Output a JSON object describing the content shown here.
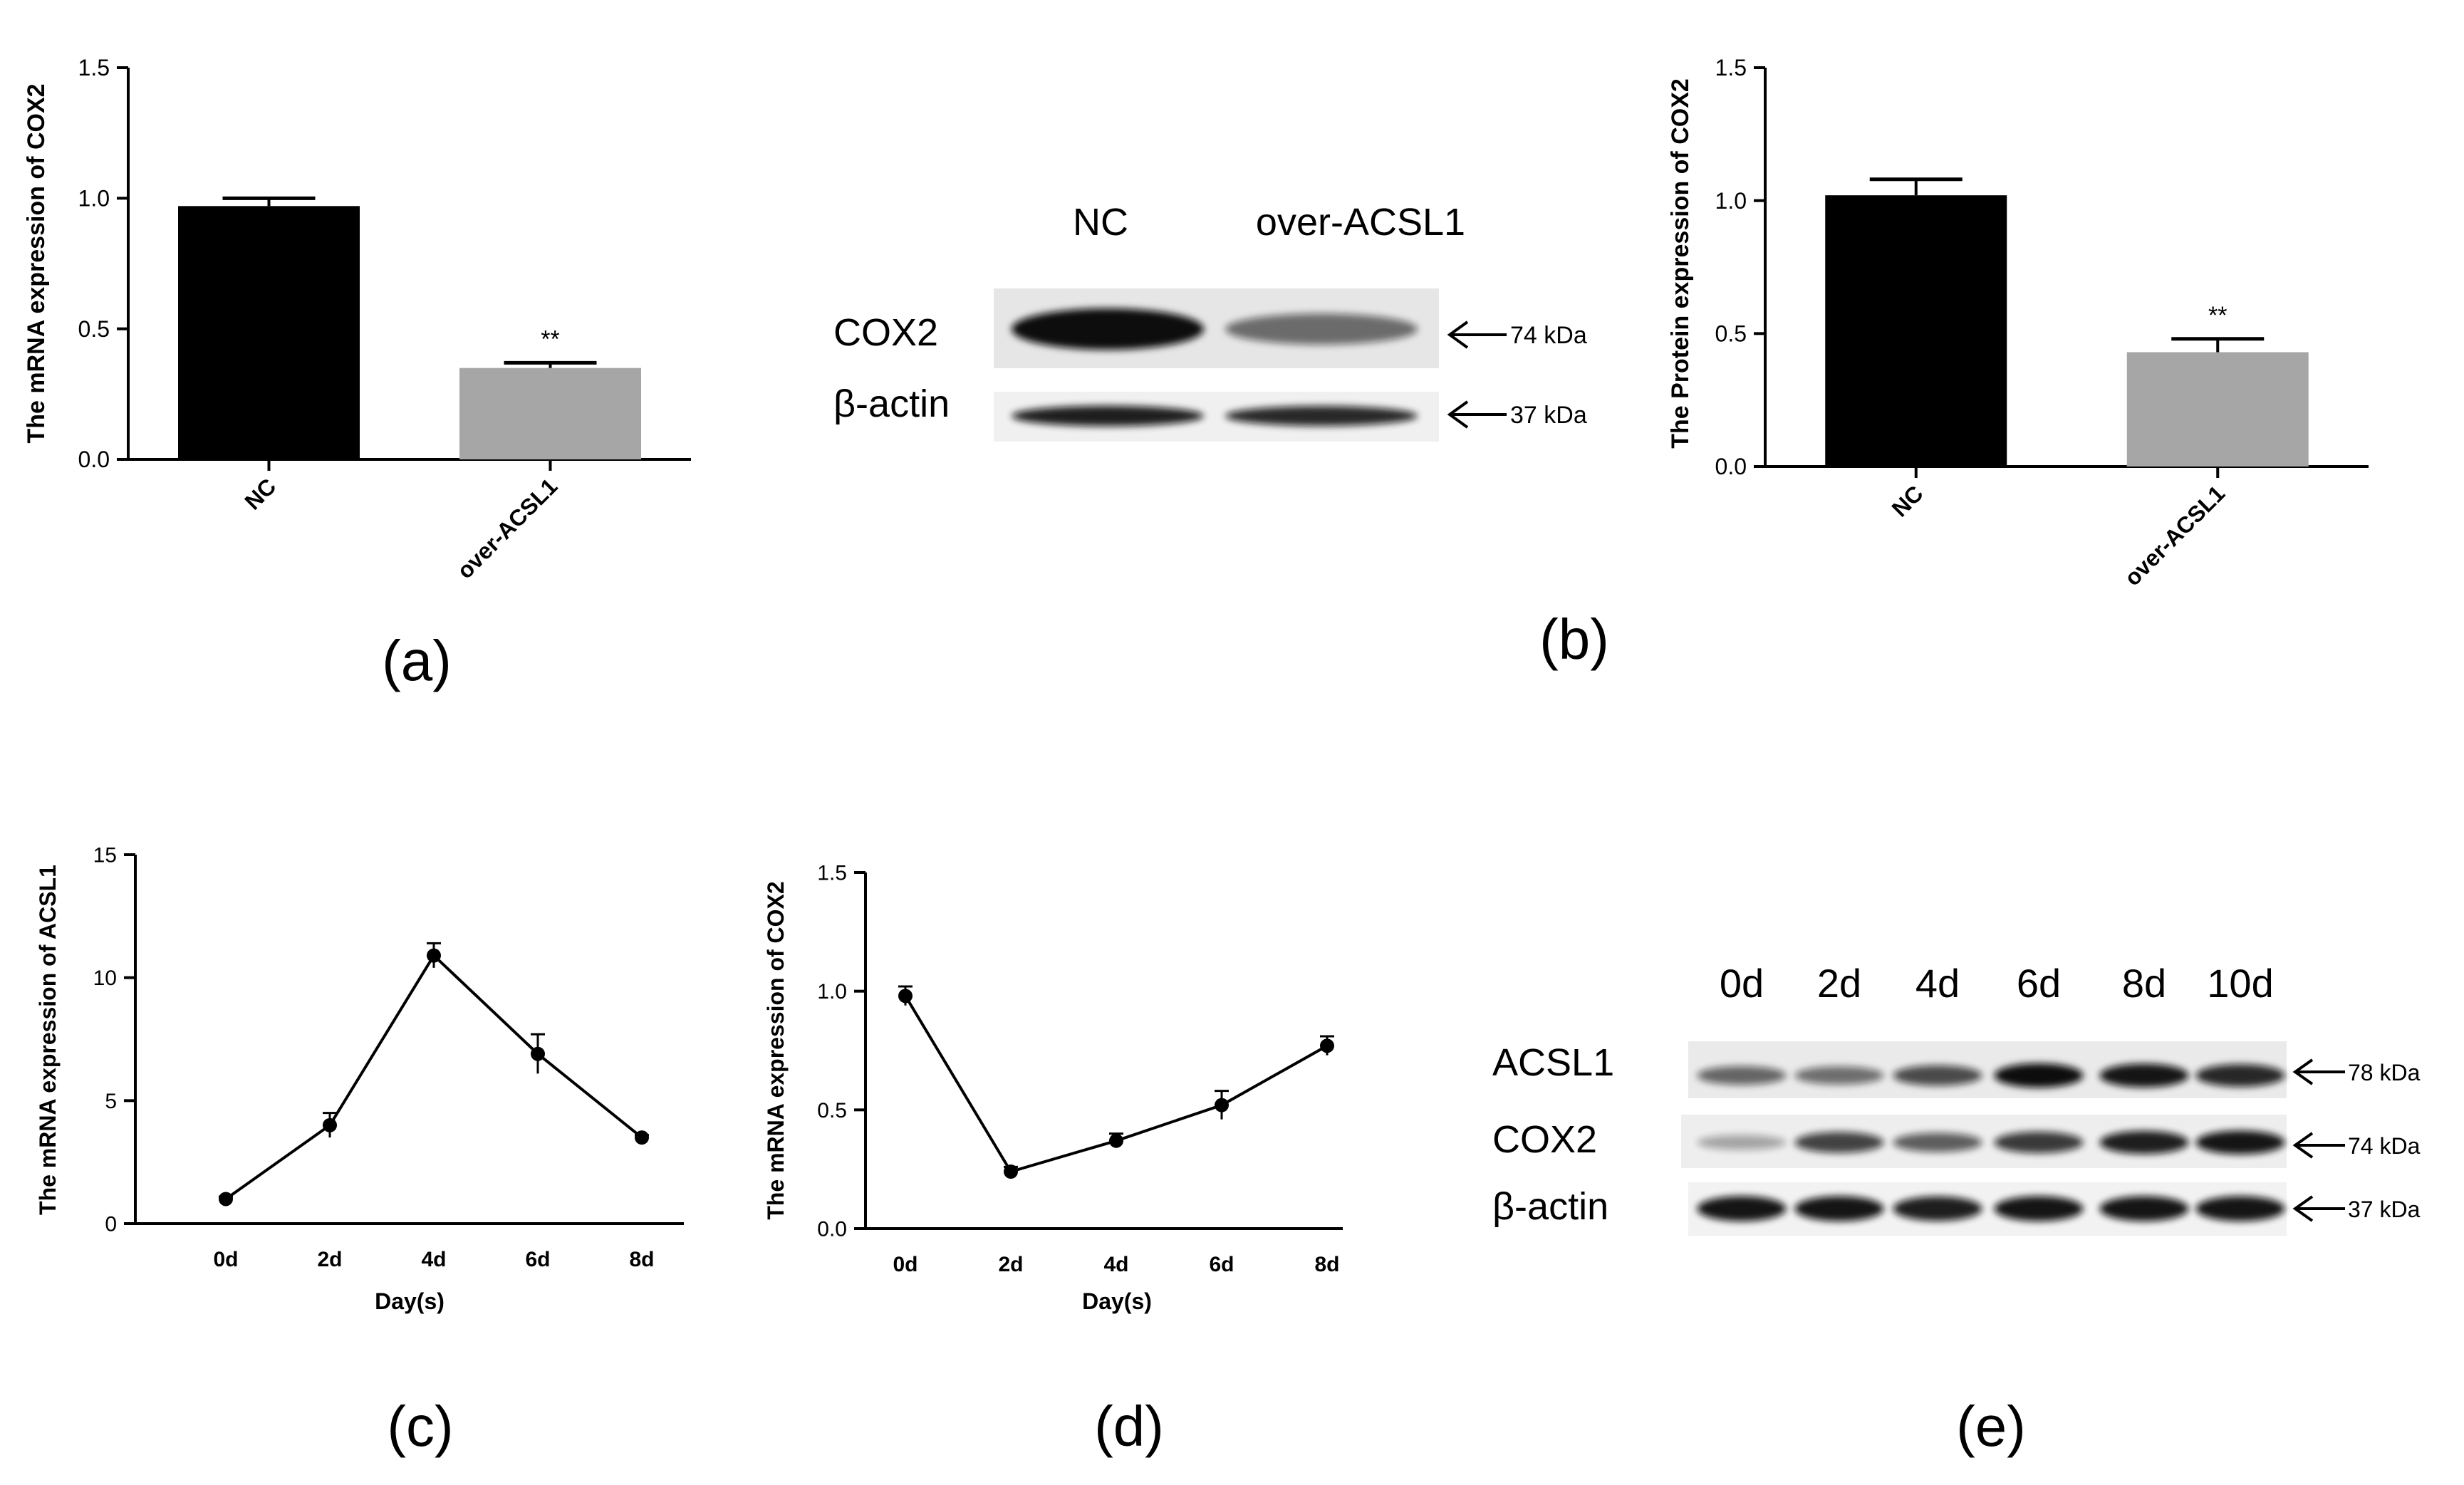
{
  "panels": {
    "a": "(a)",
    "b": "(b)",
    "c": "(c)",
    "d": "(d)",
    "e": "(e)"
  },
  "chart_data": [
    {
      "id": "a",
      "type": "bar",
      "ylabel": "The mRNA expression of COX2",
      "categories": [
        "NC",
        "over-ACSL1"
      ],
      "values": [
        0.97,
        0.35
      ],
      "errors": [
        0.03,
        0.02
      ],
      "colors": [
        "#000000",
        "#a6a6a6"
      ],
      "significance": [
        "",
        "**"
      ],
      "ylim": [
        0,
        1.5
      ],
      "yticks": [
        "0.0",
        "0.5",
        "1.0",
        "1.5"
      ]
    },
    {
      "id": "b-chart",
      "type": "bar",
      "ylabel": "The Protein expression of COX2",
      "categories": [
        "NC",
        "over-ACSL1"
      ],
      "values": [
        1.02,
        0.43
      ],
      "errors": [
        0.06,
        0.05
      ],
      "colors": [
        "#000000",
        "#a6a6a6"
      ],
      "significance": [
        "",
        "**"
      ],
      "ylim": [
        0,
        1.5
      ],
      "yticks": [
        "0.0",
        "0.5",
        "1.0",
        "1.5"
      ]
    },
    {
      "id": "c",
      "type": "line",
      "ylabel": "The mRNA expression of ACSL1",
      "xlabel": "Day(s)",
      "x": [
        "0d",
        "2d",
        "4d",
        "6d",
        "8d"
      ],
      "values": [
        1.0,
        4.0,
        10.9,
        6.9,
        3.5
      ],
      "errors": [
        0.1,
        0.5,
        0.5,
        0.8,
        0.1
      ],
      "ylim": [
        0,
        15
      ],
      "yticks": [
        "0",
        "5",
        "10",
        "15"
      ]
    },
    {
      "id": "d",
      "type": "line",
      "ylabel": "The mRNA expression of COX2",
      "xlabel": "Day(s)",
      "x": [
        "0d",
        "2d",
        "4d",
        "6d",
        "8d"
      ],
      "values": [
        0.98,
        0.24,
        0.37,
        0.52,
        0.77
      ],
      "errors": [
        0.04,
        0.02,
        0.03,
        0.06,
        0.04
      ],
      "ylim": [
        0,
        1.5
      ],
      "yticks": [
        "0.0",
        "0.5",
        "1.0",
        "1.5"
      ]
    }
  ],
  "blot_b": {
    "lanes": [
      "NC",
      "over-ACSL1"
    ],
    "rows": [
      {
        "label": "COX2",
        "size": "74 kDa",
        "intensity": [
          1.0,
          0.45
        ]
      },
      {
        "label": "β-actin",
        "size": "37 kDa",
        "intensity": [
          0.9,
          0.85
        ]
      }
    ]
  },
  "blot_e": {
    "lanes": [
      "0d",
      "2d",
      "4d",
      "6d",
      "8d",
      "10d"
    ],
    "rows": [
      {
        "label": "ACSL1",
        "size": "78 kDa",
        "intensity": [
          0.5,
          0.45,
          0.65,
          1.0,
          0.95,
          0.85
        ]
      },
      {
        "label": "COX2",
        "size": "74 kDa",
        "intensity": [
          0.15,
          0.7,
          0.55,
          0.75,
          0.9,
          0.95
        ]
      },
      {
        "label": "β-actin",
        "size": "37 kDa",
        "intensity": [
          0.95,
          0.95,
          0.9,
          0.95,
          0.95,
          0.95
        ]
      }
    ]
  }
}
